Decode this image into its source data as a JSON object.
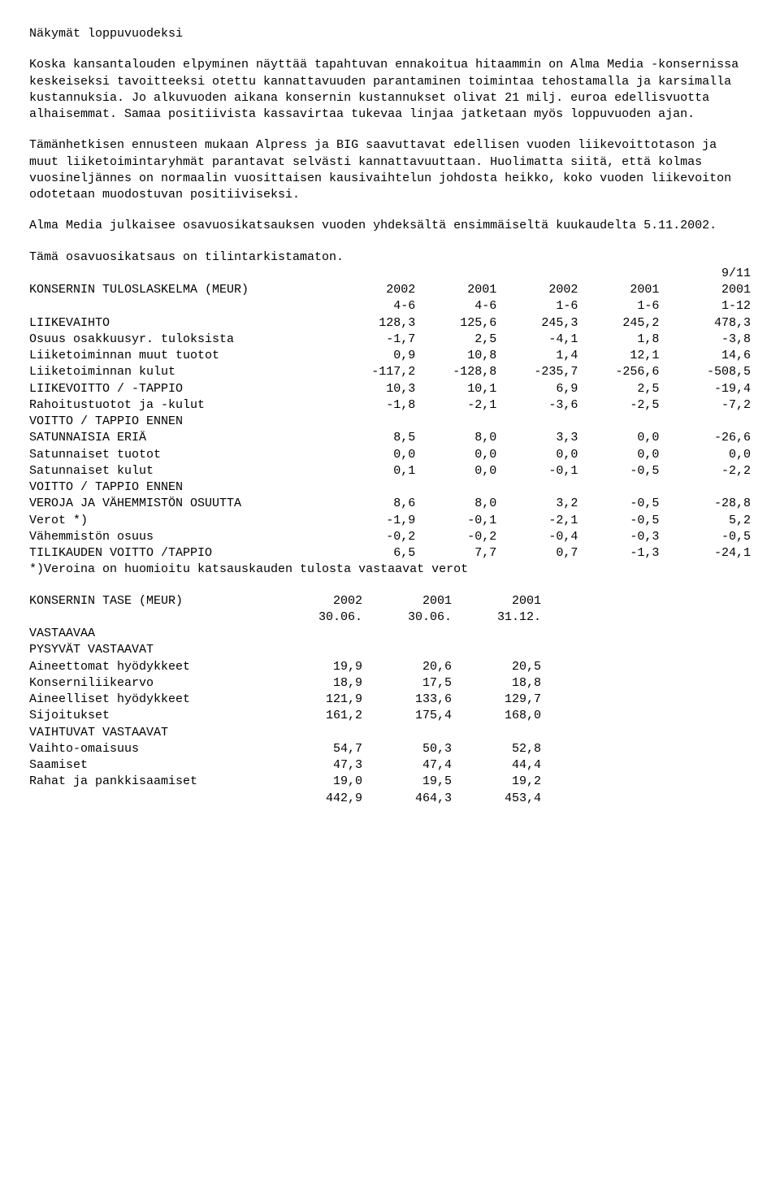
{
  "heading": "Näkymät loppuvuodeksi",
  "p1": "Koska kansantalouden elpyminen näyttää tapahtuvan ennakoitua hitaammin on Alma Media -konsernissa keskeiseksi tavoitteeksi otettu kannattavuuden parantaminen toimintaa tehostamalla ja karsimalla kustannuksia. Jo alkuvuoden aikana konsernin kustannukset olivat 21 milj. euroa edellisvuotta alhaisemmat. Samaa positiivista kassavirtaa tukevaa linjaa jatketaan myös loppuvuoden ajan.",
  "p2": "Tämänhetkisen ennusteen mukaan Alpress ja BIG saavuttavat edellisen vuoden liikevoittotason ja muut liiketoimintaryhmät parantavat selvästi kannattavuuttaan. Huolimatta siitä, että kolmas vuosineljännes on normaalin vuosittaisen kausivaihtelun johdosta heikko, koko vuoden liikevoiton odotetaan muodostuvan positiiviseksi.",
  "p3": "Alma Media julkaisee osavuosikatsauksen vuoden yhdeksältä ensimmäiseltä kuukaudelta 5.11.2002.",
  "p4": "Tämä osavuosikatsaus on tilintarkistamaton.",
  "corner": "9/11",
  "income": {
    "title": "KONSERNIN TULOSLASKELMA (MEUR)",
    "year_headers": [
      "2002",
      "2001",
      "2002",
      "2001",
      "2001"
    ],
    "period_headers": [
      "4-6",
      "4-6",
      "1-6",
      "1-6",
      "1-12"
    ],
    "rows": [
      {
        "label": "LIIKEVAIHTO",
        "vals": [
          "128,3",
          "125,6",
          "245,3",
          "245,2",
          "478,3"
        ]
      },
      {
        "label": "Osuus osakkuusyr. tuloksista",
        "vals": [
          "-1,7",
          "2,5",
          "-4,1",
          "1,8",
          "-3,8"
        ]
      },
      {
        "label": "Liiketoiminnan muut tuotot",
        "vals": [
          "0,9",
          "10,8",
          "1,4",
          "12,1",
          "14,6"
        ]
      },
      {
        "label": "Liiketoiminnan kulut",
        "vals": [
          "-117,2",
          "-128,8",
          "-235,7",
          "-256,6",
          "-508,5"
        ]
      },
      {
        "label": "LIIKEVOITTO / -TAPPIO",
        "vals": [
          "10,3",
          "10,1",
          "6,9",
          "2,5",
          "-19,4"
        ]
      },
      {
        "label": "Rahoitustuotot ja -kulut",
        "vals": [
          "-1,8",
          "-2,1",
          "-3,6",
          "-2,5",
          "-7,2"
        ]
      },
      {
        "label": "VOITTO / TAPPIO ENNEN",
        "vals": [
          "",
          "",
          "",
          "",
          ""
        ]
      },
      {
        "label": "SATUNNAISIA ERIÄ",
        "vals": [
          "8,5",
          "8,0",
          "3,3",
          "0,0",
          "-26,6"
        ]
      },
      {
        "label": "Satunnaiset tuotot",
        "vals": [
          "0,0",
          "0,0",
          "0,0",
          "0,0",
          "0,0"
        ]
      },
      {
        "label": "Satunnaiset kulut",
        "vals": [
          "0,1",
          "0,0",
          "-0,1",
          "-0,5",
          "-2,2"
        ]
      },
      {
        "label": "VOITTO / TAPPIO ENNEN",
        "vals": [
          "",
          "",
          "",
          "",
          ""
        ]
      },
      {
        "label": "VEROJA JA VÄHEMMISTÖN OSUUTTA",
        "vals": [
          "8,6",
          "8,0",
          "3,2",
          "-0,5",
          "-28,8"
        ]
      },
      {
        "label": "Verot *)",
        "vals": [
          "-1,9",
          "-0,1",
          "-2,1",
          "-0,5",
          "5,2"
        ]
      },
      {
        "label": "Vähemmistön osuus",
        "vals": [
          "-0,2",
          "-0,2",
          "-0,4",
          "-0,3",
          "-0,5"
        ]
      },
      {
        "label": "TILIKAUDEN VOITTO /TAPPIO",
        "vals": [
          "6,5",
          "7,7",
          "0,7",
          "-1,3",
          "-24,1"
        ]
      }
    ],
    "footnote": "*)Veroina on huomioitu katsauskauden tulosta vastaavat verot"
  },
  "balance": {
    "title": "KONSERNIN TASE (MEUR)",
    "year_headers": [
      "2002",
      "2001",
      "2001"
    ],
    "date_headers": [
      "30.06.",
      "30.06.",
      "31.12."
    ],
    "rows": [
      {
        "label": "VASTAAVAA",
        "vals": [
          "",
          "",
          ""
        ]
      },
      {
        "label": "PYSYVÄT VASTAAVAT",
        "vals": [
          "",
          "",
          ""
        ]
      },
      {
        "label": "Aineettomat hyödykkeet",
        "vals": [
          "19,9",
          "20,6",
          "20,5"
        ]
      },
      {
        "label": "Konserniliikearvo",
        "vals": [
          "18,9",
          "17,5",
          "18,8"
        ]
      },
      {
        "label": "Aineelliset hyödykkeet",
        "vals": [
          "121,9",
          "133,6",
          "129,7"
        ]
      },
      {
        "label": "Sijoitukset",
        "vals": [
          "161,2",
          "175,4",
          "168,0"
        ]
      },
      {
        "label": "VAIHTUVAT VASTAAVAT",
        "vals": [
          "",
          "",
          ""
        ]
      },
      {
        "label": "Vaihto-omaisuus",
        "vals": [
          "54,7",
          "50,3",
          "52,8"
        ]
      },
      {
        "label": "Saamiset",
        "vals": [
          "47,3",
          "47,4",
          "44,4"
        ]
      },
      {
        "label": "Rahat ja pankkisaamiset",
        "vals": [
          "19,0",
          "19,5",
          "19,2"
        ]
      },
      {
        "label": "",
        "vals": [
          "442,9",
          "464,3",
          "453,4"
        ]
      }
    ]
  }
}
